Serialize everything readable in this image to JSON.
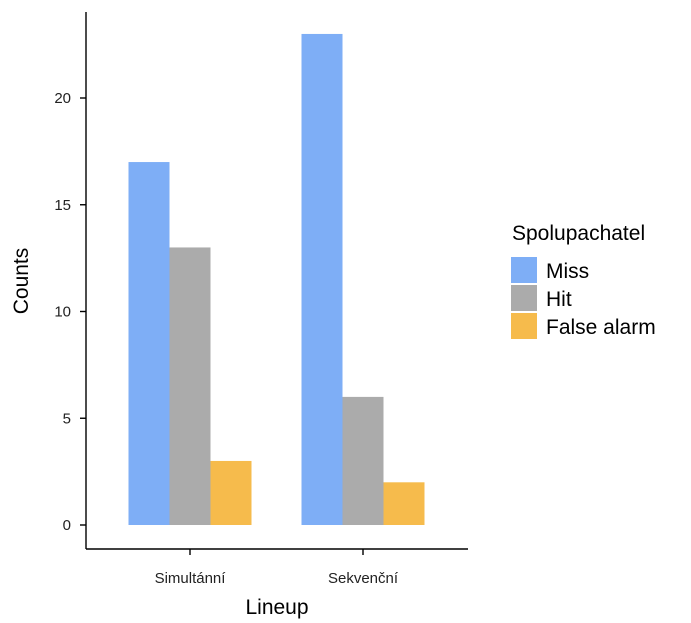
{
  "chart_data": {
    "type": "bar",
    "categories": [
      "Simultánní",
      "Sekvenční"
    ],
    "series": [
      {
        "name": "Miss",
        "values": [
          17,
          23
        ],
        "color": "#7eaef6"
      },
      {
        "name": "Hit",
        "values": [
          13,
          6
        ],
        "color": "#ababab"
      },
      {
        "name": "False alarm",
        "values": [
          3,
          2
        ],
        "color": "#f6bb4c"
      }
    ],
    "xlabel": "Lineup",
    "ylabel": "Counts",
    "ylim": [
      0,
      24
    ],
    "yticks": [
      0,
      5,
      10,
      15,
      20
    ],
    "legend_title": "Spolupachatel",
    "legend_position": "right",
    "grid": false
  }
}
